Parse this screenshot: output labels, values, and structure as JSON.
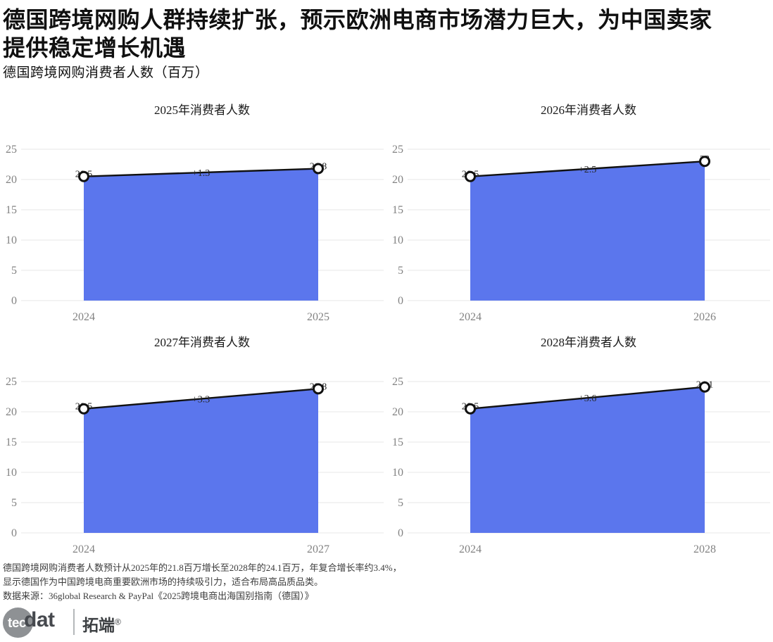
{
  "page": {
    "title_line1": "德国跨境网购人群持续扩张，预示欧洲电商市场潜力巨大，为中国卖家",
    "title_line2": "提供稳定增长机遇",
    "subtitle": "德国跨境网购消费者人数（百万）"
  },
  "colors": {
    "area_fill": "#5b76ed",
    "line": "#111111",
    "grid": "#e7e7e7",
    "tick_label": "#828282",
    "chart_title": "#1a1a1a",
    "data_label": "#262626"
  },
  "chart_data": [
    {
      "type": "area",
      "title": "2025年消费者人数",
      "categories": [
        "2024",
        "2025"
      ],
      "values": [
        20.5,
        21.8
      ],
      "point_labels": [
        "20.5",
        "21.8"
      ],
      "delta_label": "+1.3",
      "ylim": [
        0,
        25
      ],
      "yticks": [
        0,
        5,
        10,
        15,
        20,
        25
      ],
      "grid": true,
      "legend_position": "none"
    },
    {
      "type": "area",
      "title": "2026年消费者人数",
      "categories": [
        "2024",
        "2026"
      ],
      "values": [
        20.5,
        23
      ],
      "point_labels": [
        "20.5",
        "23"
      ],
      "delta_label": "+2.5",
      "ylim": [
        0,
        25
      ],
      "yticks": [
        0,
        5,
        10,
        15,
        20,
        25
      ],
      "grid": true,
      "legend_position": "none"
    },
    {
      "type": "area",
      "title": "2027年消费者人数",
      "categories": [
        "2024",
        "2027"
      ],
      "values": [
        20.5,
        23.8
      ],
      "point_labels": [
        "20.5",
        "23.8"
      ],
      "delta_label": "+3.3",
      "ylim": [
        0,
        25
      ],
      "yticks": [
        0,
        5,
        10,
        15,
        20,
        25
      ],
      "grid": true,
      "legend_position": "none"
    },
    {
      "type": "area",
      "title": "2028年消费者人数",
      "categories": [
        "2024",
        "2028"
      ],
      "values": [
        20.5,
        24.1
      ],
      "point_labels": [
        "20.5",
        "24.1"
      ],
      "delta_label": "+3.6",
      "ylim": [
        0,
        25
      ],
      "yticks": [
        0,
        5,
        10,
        15,
        20,
        25
      ],
      "grid": true,
      "legend_position": "none"
    }
  ],
  "footnote": {
    "line1": "德国跨境网购消费者人数预计从2025年的21.8百万增长至2028年的24.1百万，年复合增长率约3.4%，",
    "line2": "显示德国作为中国跨境电商重要欧洲市场的持续吸引力，适合布局高品质品类。",
    "line3": "数据来源：36global Research & PayPal《2025跨境电商出海国别指南（德国）》"
  },
  "logo": {
    "circle_text": "tec",
    "wordmark": "dat",
    "brand_cjk": "拓端",
    "registered_mark": "®"
  }
}
